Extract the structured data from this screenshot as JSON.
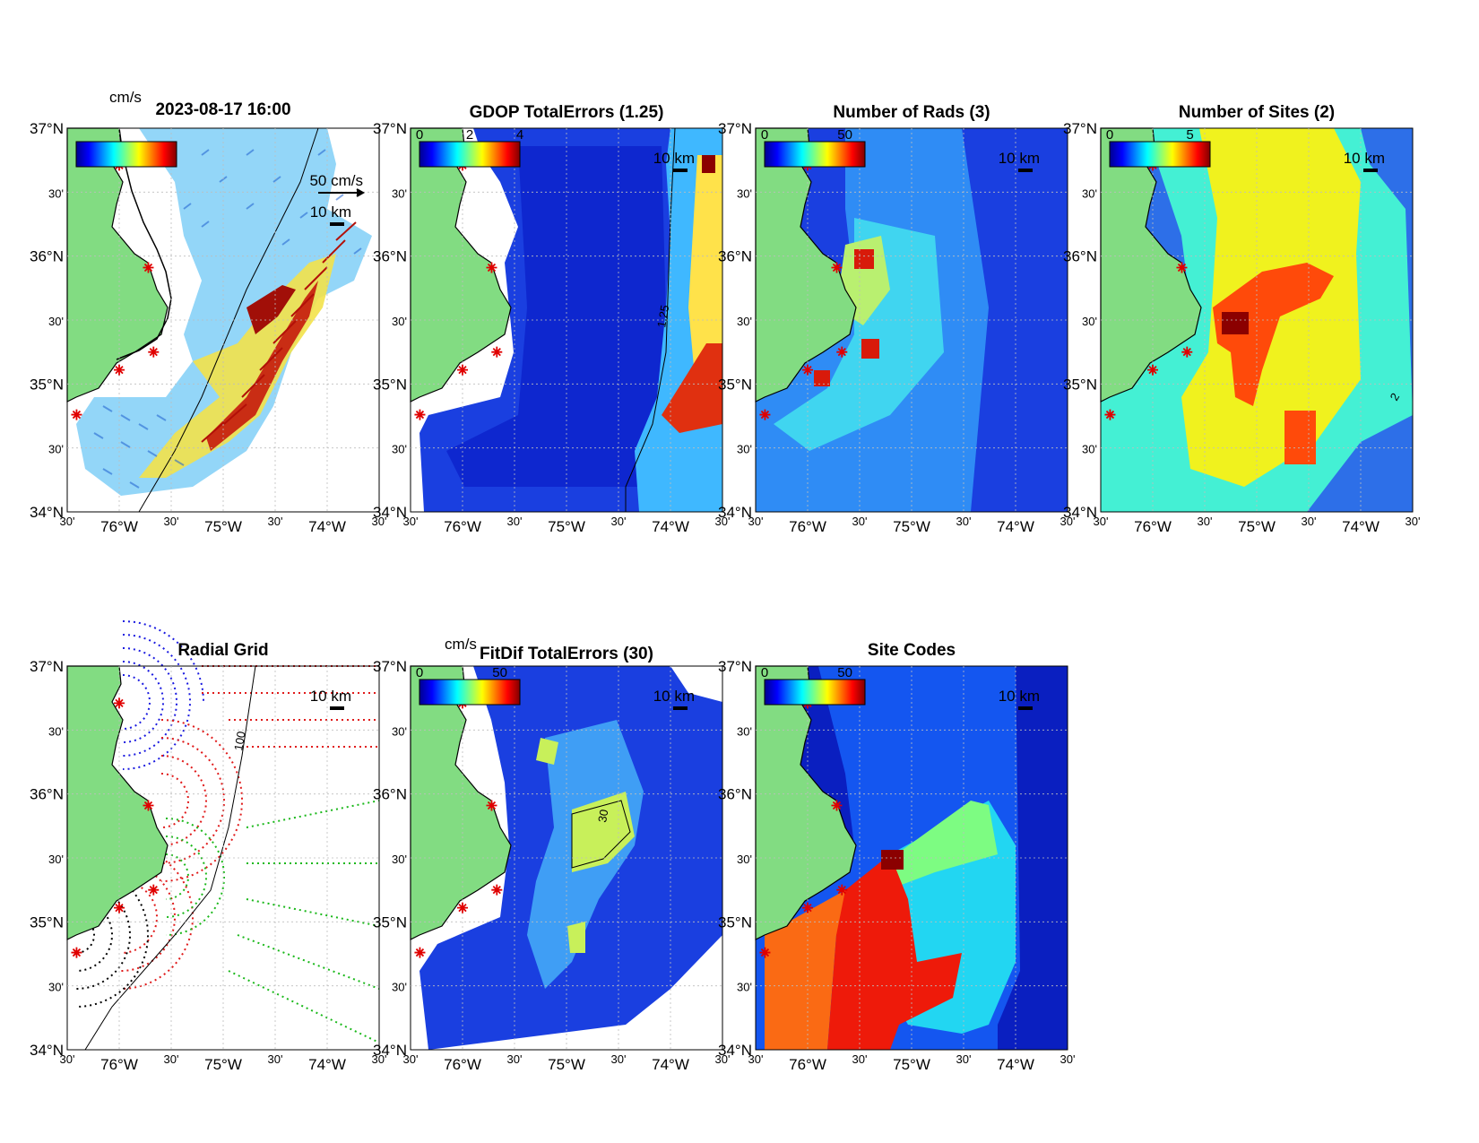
{
  "colors": {
    "land": "#82dc82",
    "coast": "#000000",
    "site_marker": "#e00000",
    "grid_line": "#bdbdbd",
    "colorbar": [
      "#00008f",
      "#0000ff",
      "#0080ff",
      "#00ffff",
      "#80ff80",
      "#ffff00",
      "#ff8000",
      "#ff0000",
      "#800000"
    ]
  },
  "icons": {
    "site": "asterisk-icon",
    "scale": "scale-bar-icon"
  },
  "axes": {
    "lat_labels": [
      "37°N",
      "30'",
      "36°N",
      "30'",
      "35°N",
      "30'",
      "34°N"
    ],
    "lon_labels": [
      "30'",
      "76°W",
      "30'",
      "75°W",
      "30'",
      "74°W",
      "30'"
    ]
  },
  "panels": {
    "p1": {
      "title": "2023-08-17 16:00",
      "units": "cm/s",
      "vector_scale": "50 cm/s",
      "scale_km": "10 km"
    },
    "p2": {
      "title": "GDOP TotalErrors (1.25)",
      "cbar_ticks": [
        "0",
        "2",
        "4"
      ],
      "scale_km": "10 km",
      "contour_label": "1.25"
    },
    "p3": {
      "title": "Number of Rads (3)",
      "cbar_ticks": [
        "0",
        "50"
      ],
      "scale_km": "10 km"
    },
    "p4": {
      "title": "Number of Sites (2)",
      "cbar_ticks": [
        "0",
        "5"
      ],
      "scale_km": "10 km",
      "contour_label": "2"
    },
    "p5": {
      "title": "Radial Grid",
      "scale_km": "10 km",
      "contour_label": "100"
    },
    "p6": {
      "title": "FitDif TotalErrors (30)",
      "units": "cm/s",
      "cbar_ticks": [
        "0",
        "50"
      ],
      "scale_km": "10 km",
      "contour_label": "30"
    },
    "p7": {
      "title": "Site Codes",
      "cbar_ticks": [
        "0",
        "50"
      ],
      "scale_km": "10 km"
    }
  },
  "sites": [
    {
      "lon": -76.0,
      "lat": 36.71
    },
    {
      "lon": -75.72,
      "lat": 35.91
    },
    {
      "lon": -75.67,
      "lat": 35.25
    },
    {
      "lon": -76.0,
      "lat": 35.11
    },
    {
      "lon": -76.41,
      "lat": 34.76
    }
  ]
}
